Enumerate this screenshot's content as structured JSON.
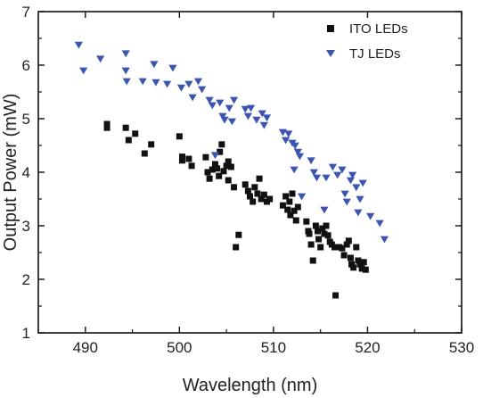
{
  "chart_data": {
    "type": "scatter",
    "xlabel": "Wavelength (nm)",
    "ylabel": "Output Power (mW)",
    "xlim": [
      485,
      530
    ],
    "ylim": [
      1,
      7
    ],
    "x_ticks": [
      490,
      500,
      510,
      520,
      530
    ],
    "y_ticks": [
      1,
      2,
      3,
      4,
      5,
      6,
      7
    ],
    "grid": false,
    "legend_position": "top-right",
    "series": [
      {
        "name": "ITO LEDs",
        "marker": "square",
        "color": "#111111",
        "points": [
          [
            492.3,
            4.9
          ],
          [
            492.3,
            4.83
          ],
          [
            494.3,
            4.83
          ],
          [
            495.3,
            4.72
          ],
          [
            494.6,
            4.6
          ],
          [
            496.3,
            4.35
          ],
          [
            497.0,
            4.52
          ],
          [
            500.0,
            4.67
          ],
          [
            500.3,
            4.22
          ],
          [
            500.3,
            4.29
          ],
          [
            501.0,
            4.25
          ],
          [
            501.3,
            4.12
          ],
          [
            502.8,
            4.28
          ],
          [
            503.0,
            4.0
          ],
          [
            503.2,
            3.88
          ],
          [
            503.5,
            4.05
          ],
          [
            503.8,
            4.15
          ],
          [
            504.0,
            4.07
          ],
          [
            504.2,
            3.93
          ],
          [
            504.3,
            4.38
          ],
          [
            504.5,
            4.52
          ],
          [
            504.7,
            4.02
          ],
          [
            505.0,
            4.12
          ],
          [
            505.2,
            4.2
          ],
          [
            505.5,
            4.1
          ],
          [
            505.2,
            3.85
          ],
          [
            505.8,
            3.72
          ],
          [
            506.0,
            2.6
          ],
          [
            506.3,
            2.83
          ],
          [
            507.0,
            3.77
          ],
          [
            507.3,
            3.65
          ],
          [
            507.5,
            3.55
          ],
          [
            507.8,
            3.45
          ],
          [
            508.0,
            3.72
          ],
          [
            508.3,
            3.6
          ],
          [
            508.5,
            3.88
          ],
          [
            508.7,
            3.5
          ],
          [
            509.0,
            3.58
          ],
          [
            509.3,
            3.45
          ],
          [
            509.6,
            3.5
          ],
          [
            511.0,
            3.38
          ],
          [
            511.3,
            3.55
          ],
          [
            511.5,
            3.3
          ],
          [
            511.7,
            3.45
          ],
          [
            511.8,
            3.2
          ],
          [
            512.0,
            3.6
          ],
          [
            512.2,
            3.28
          ],
          [
            512.4,
            3.1
          ],
          [
            512.6,
            3.35
          ],
          [
            513.5,
            3.08
          ],
          [
            513.7,
            2.9
          ],
          [
            513.8,
            2.85
          ],
          [
            514.0,
            2.65
          ],
          [
            514.2,
            2.35
          ],
          [
            514.5,
            3.0
          ],
          [
            514.7,
            2.9
          ],
          [
            514.8,
            2.75
          ],
          [
            515.0,
            2.6
          ],
          [
            515.2,
            2.95
          ],
          [
            515.4,
            2.85
          ],
          [
            515.6,
            3.0
          ],
          [
            515.8,
            2.82
          ],
          [
            516.0,
            2.7
          ],
          [
            516.2,
            2.65
          ],
          [
            516.5,
            2.6
          ],
          [
            516.6,
            1.7
          ],
          [
            517.0,
            2.6
          ],
          [
            517.3,
            2.58
          ],
          [
            517.5,
            2.45
          ],
          [
            517.8,
            2.65
          ],
          [
            518.0,
            2.72
          ],
          [
            518.2,
            2.4
          ],
          [
            518.3,
            2.28
          ],
          [
            518.5,
            2.22
          ],
          [
            518.8,
            2.6
          ],
          [
            519.0,
            2.35
          ],
          [
            519.2,
            2.28
          ],
          [
            519.4,
            2.2
          ],
          [
            519.6,
            2.32
          ],
          [
            519.8,
            2.18
          ]
        ]
      },
      {
        "name": "TJ LEDs",
        "marker": "triangle-down",
        "color": "#3b55b0",
        "points": [
          [
            489.3,
            6.38
          ],
          [
            489.8,
            5.9
          ],
          [
            491.6,
            6.12
          ],
          [
            494.3,
            6.22
          ],
          [
            494.3,
            5.9
          ],
          [
            494.4,
            5.7
          ],
          [
            496.1,
            5.7
          ],
          [
            497.3,
            6.02
          ],
          [
            497.5,
            5.68
          ],
          [
            498.7,
            5.65
          ],
          [
            499.3,
            5.95
          ],
          [
            500.2,
            5.58
          ],
          [
            501.0,
            5.65
          ],
          [
            501.4,
            5.4
          ],
          [
            502.0,
            5.7
          ],
          [
            502.4,
            5.55
          ],
          [
            503.2,
            5.35
          ],
          [
            503.5,
            5.25
          ],
          [
            503.8,
            4.32
          ],
          [
            504.3,
            5.3
          ],
          [
            504.6,
            5.05
          ],
          [
            504.8,
            4.98
          ],
          [
            505.3,
            5.2
          ],
          [
            505.6,
            4.95
          ],
          [
            505.8,
            5.35
          ],
          [
            507.0,
            5.18
          ],
          [
            507.3,
            5.05
          ],
          [
            507.6,
            5.2
          ],
          [
            508.2,
            4.98
          ],
          [
            508.8,
            5.1
          ],
          [
            509.0,
            4.88
          ],
          [
            509.3,
            5.02
          ],
          [
            511.0,
            4.75
          ],
          [
            511.3,
            4.6
          ],
          [
            511.6,
            4.72
          ],
          [
            512.0,
            4.55
          ],
          [
            512.3,
            4.5
          ],
          [
            512.6,
            4.38
          ],
          [
            512.2,
            4.05
          ],
          [
            512.8,
            4.3
          ],
          [
            513.0,
            3.55
          ],
          [
            514.0,
            4.22
          ],
          [
            514.3,
            4.0
          ],
          [
            514.6,
            3.9
          ],
          [
            515.4,
            3.3
          ],
          [
            515.6,
            3.9
          ],
          [
            516.3,
            4.1
          ],
          [
            516.8,
            3.95
          ],
          [
            517.3,
            4.05
          ],
          [
            517.6,
            3.6
          ],
          [
            517.8,
            3.45
          ],
          [
            518.2,
            3.85
          ],
          [
            518.4,
            3.95
          ],
          [
            518.8,
            3.72
          ],
          [
            519.0,
            3.25
          ],
          [
            519.2,
            3.5
          ],
          [
            519.5,
            3.8
          ],
          [
            520.3,
            3.18
          ],
          [
            521.3,
            3.05
          ],
          [
            521.8,
            2.75
          ]
        ]
      }
    ]
  }
}
